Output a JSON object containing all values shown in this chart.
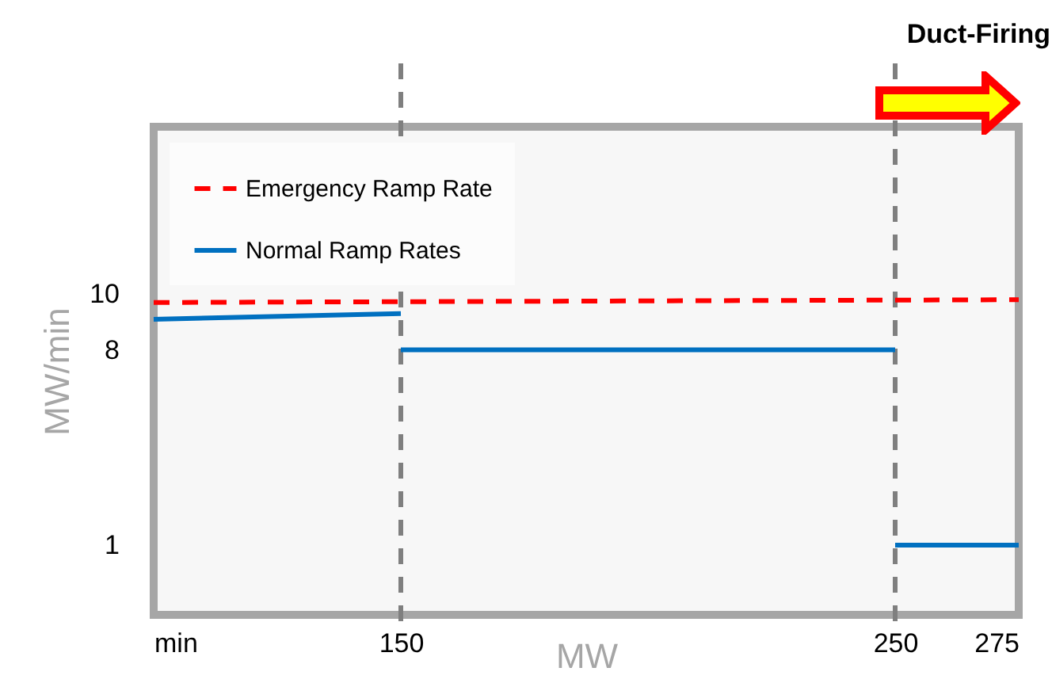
{
  "chart_data": {
    "type": "line",
    "xlabel": "MW",
    "ylabel": "MW/min",
    "xlim": [
      100,
      275
    ],
    "xticks": [
      {
        "value": 100,
        "label": "min"
      },
      150,
      250,
      275
    ],
    "ylim": [
      -1.5,
      16
    ],
    "yticks": [
      1,
      8,
      10
    ],
    "series": [
      {
        "name": "Emergency Ramp Rate",
        "color": "#ff0000",
        "line_style": "dashed",
        "x": [
          100,
          275
        ],
        "values": [
          9.7,
          9.8
        ]
      },
      {
        "name": "Normal Ramp Rates",
        "color": "#0070c0",
        "line_style": "solid",
        "x": [
          100,
          150,
          null,
          150,
          250,
          null,
          250,
          275
        ],
        "values": [
          9.1,
          9.3,
          null,
          8,
          8,
          null,
          1,
          1
        ]
      }
    ],
    "ref_lines": [
      {
        "axis": "x",
        "value": 150,
        "color": "#7f7f7f",
        "line_style": "dashed"
      },
      {
        "axis": "x",
        "value": 250,
        "color": "#7f7f7f",
        "line_style": "dashed"
      }
    ],
    "annotations": [
      "Duct-Firing"
    ],
    "legend": "top left",
    "grid": false,
    "marker": "none"
  }
}
